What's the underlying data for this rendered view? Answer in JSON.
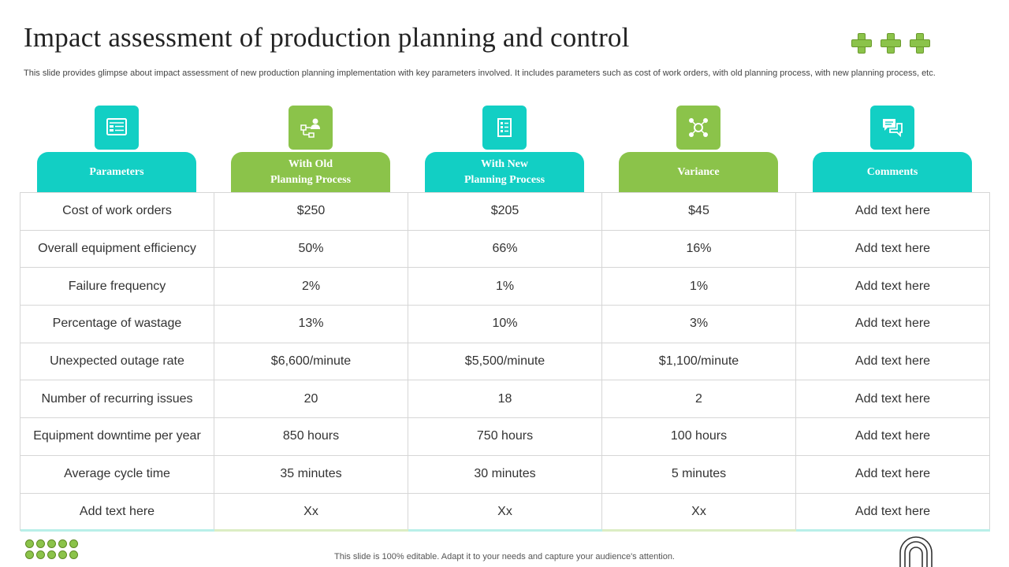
{
  "title": "Impact assessment of production planning and control",
  "subtitle": "This slide provides glimpse about impact assessment of new production planning implementation with key parameters involved. It includes parameters such as cost of work orders, with old planning process, with new planning process, etc.",
  "colors": {
    "teal": "#12cfc4",
    "green": "#8bc34a"
  },
  "columns": [
    {
      "label": "Parameters",
      "icon": "dashboard-icon",
      "color": "teal"
    },
    {
      "label": "With Old\nPlanning Process",
      "icon": "flowchart-person-icon",
      "color": "green"
    },
    {
      "label": "With New\nPlanning Process",
      "icon": "document-list-icon",
      "color": "teal"
    },
    {
      "label": "Variance",
      "icon": "network-hub-icon",
      "color": "green"
    },
    {
      "label": "Comments",
      "icon": "chat-bubbles-icon",
      "color": "teal"
    }
  ],
  "rows": [
    [
      "Cost of work orders",
      "$250",
      "$205",
      "$45",
      "Add text here"
    ],
    [
      "Overall equipment efficiency",
      "50%",
      "66%",
      "16%",
      "Add text here"
    ],
    [
      "Failure frequency",
      "2%",
      "1%",
      "1%",
      "Add text here"
    ],
    [
      "Percentage of wastage",
      "13%",
      "10%",
      "3%",
      "Add text here"
    ],
    [
      "Unexpected outage rate",
      "$6,600/minute",
      "$5,500/minute",
      "$1,100/minute",
      "Add text here"
    ],
    [
      "Number of recurring issues",
      "20",
      "18",
      "2",
      "Add text here"
    ],
    [
      "Equipment downtime per year",
      "850 hours",
      "750 hours",
      "100 hours",
      "Add text here"
    ],
    [
      "Average cycle time",
      "35 minutes",
      "30 minutes",
      "5 minutes",
      "Add text here"
    ],
    [
      "Add text here",
      "Xx",
      "Xx",
      "Xx",
      "Add text here"
    ]
  ],
  "footer": "This slide is 100% editable. Adapt it to your needs and capture your audience's attention."
}
